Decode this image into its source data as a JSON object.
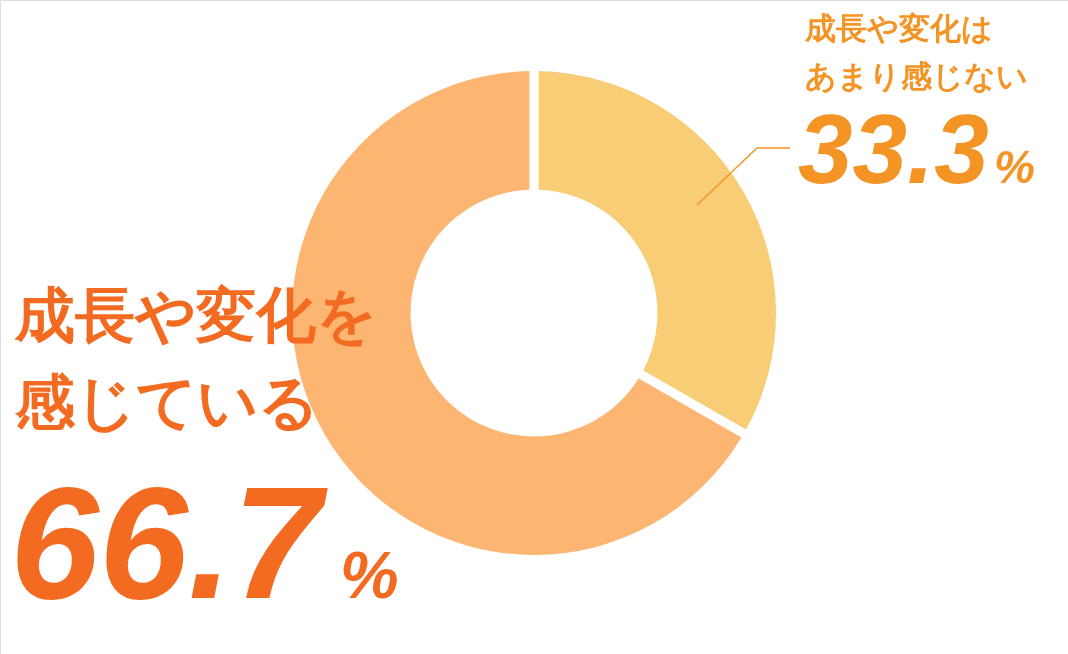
{
  "chart_data": {
    "type": "donut",
    "categories": [
      "成長や変化はあまり感じない",
      "成長や変化を感じている"
    ],
    "values": [
      33.3,
      66.7
    ],
    "colors": [
      "#f8cd76",
      "#fdb572"
    ],
    "value_labels": [
      "33.3%",
      "66.7%"
    ]
  }
}
